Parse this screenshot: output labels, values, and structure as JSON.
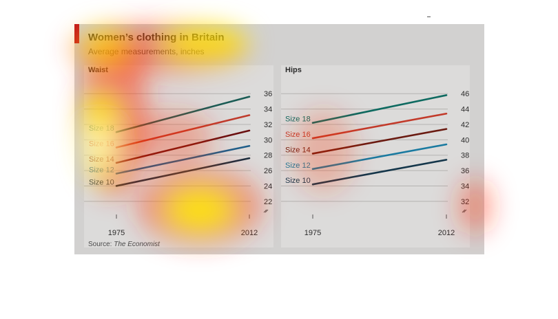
{
  "title": "Women’s clothing in Britain",
  "subtitle": "Average measurements, inches",
  "source_prefix": "Source: ",
  "source_name": "The Economist",
  "colors": {
    "background": "#d2d1d0",
    "plot_background": "#dcdbda",
    "grid": "#b4b3b1",
    "accent": "#c0121e"
  },
  "chart_data": [
    {
      "type": "line",
      "title": "Waist",
      "x": [
        "1975",
        "2012"
      ],
      "xlim": [
        1975,
        2012
      ],
      "ylim": [
        21,
        37
      ],
      "yticks": [
        22,
        24,
        26,
        28,
        30,
        32,
        34,
        36
      ],
      "axis_break": true,
      "grid": true,
      "series": [
        {
          "name": "Size 18",
          "color": "#1a5c55",
          "values": [
            31,
            35.6
          ]
        },
        {
          "name": "Size 16",
          "color": "#bf3b2c",
          "values": [
            29,
            33.2
          ]
        },
        {
          "name": "Size 14",
          "color": "#6a1010",
          "values": [
            27,
            31.2
          ]
        },
        {
          "name": "Size 12",
          "color": "#1f5f8a",
          "values": [
            25.6,
            29.2
          ]
        },
        {
          "name": "Size 10",
          "color": "#1a2f3f",
          "values": [
            24,
            27.6
          ]
        }
      ]
    },
    {
      "type": "line",
      "title": "Hips",
      "x": [
        "1975",
        "2012"
      ],
      "xlim": [
        1975,
        2012
      ],
      "ylim": [
        31,
        47
      ],
      "yticks": [
        32,
        34,
        36,
        38,
        40,
        42,
        44,
        46
      ],
      "axis_break": true,
      "grid": true,
      "series": [
        {
          "name": "Size 18",
          "color": "#0e6a60",
          "values": [
            42.2,
            45.8
          ]
        },
        {
          "name": "Size 16",
          "color": "#c23a2a",
          "values": [
            40.2,
            43.4
          ]
        },
        {
          "name": "Size 14",
          "color": "#6a1a10",
          "values": [
            38.2,
            41.4
          ]
        },
        {
          "name": "Size 12",
          "color": "#1a7aa0",
          "values": [
            36.2,
            39.4
          ]
        },
        {
          "name": "Size 10",
          "color": "#14364a",
          "values": [
            34.2,
            37.4
          ]
        }
      ]
    }
  ]
}
